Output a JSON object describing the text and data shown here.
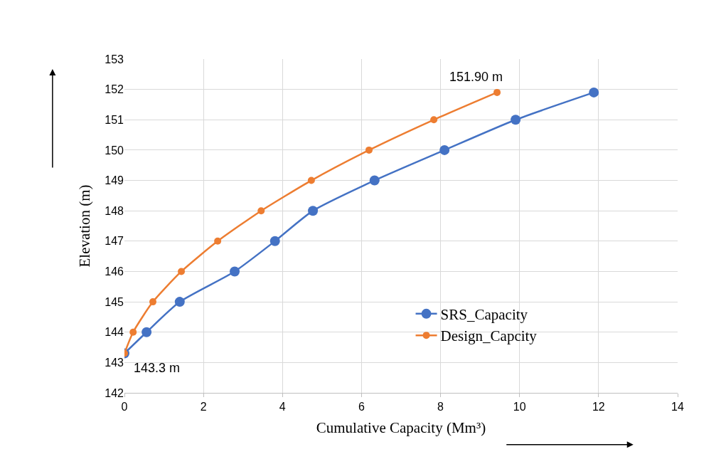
{
  "chart_data": {
    "type": "line",
    "xlabel": "Cumulative Capacity (Mm³)",
    "ylabel": "Elevation (m)",
    "xlim": [
      0,
      14
    ],
    "xticks": [
      0,
      2,
      4,
      6,
      8,
      10,
      12,
      14
    ],
    "ylim": [
      142,
      153
    ],
    "yticks": [
      142,
      143,
      144,
      145,
      146,
      147,
      148,
      149,
      150,
      151,
      152,
      153
    ],
    "grid": true,
    "legend": "bottom right",
    "marker": "circle",
    "line_style": "solid",
    "series": [
      {
        "name": "SRS_Capacity",
        "color": "#4472c4",
        "x": [
          0,
          0.56,
          1.4,
          2.79,
          3.81,
          4.77,
          6.33,
          8.1,
          9.9,
          11.88
        ],
        "values": [
          143.3,
          144,
          145,
          146,
          147,
          148,
          149,
          150,
          151,
          151.9
        ]
      },
      {
        "name": "Design_Capcity",
        "color": "#ed7d31",
        "x": [
          0,
          0.22,
          0.72,
          1.44,
          2.36,
          3.46,
          4.73,
          6.19,
          7.83,
          9.43
        ],
        "values": [
          143.3,
          144,
          145,
          146,
          147,
          148,
          149,
          150,
          151,
          151.9
        ]
      }
    ],
    "annotations": [
      {
        "text": "151.90 m",
        "x": 9.43,
        "y": 151.9
      },
      {
        "text": "143.3 m",
        "x": 0,
        "y": 143.3
      }
    ]
  }
}
